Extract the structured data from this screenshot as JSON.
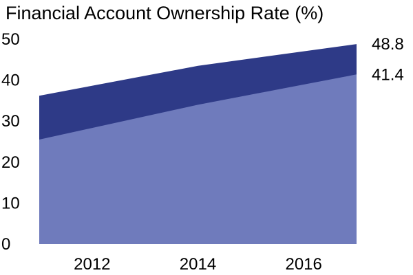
{
  "chart_data": {
    "type": "area",
    "title": "Financial Account Ownership Rate (%)",
    "xlabel": "",
    "ylabel": "",
    "x": [
      2011,
      2014,
      2017
    ],
    "x_ticks": [
      "2012",
      "2014",
      "2016"
    ],
    "y_ticks": [
      "0",
      "10",
      "20",
      "30",
      "40",
      "50"
    ],
    "xlim": [
      2011,
      2017
    ],
    "ylim": [
      0,
      50
    ],
    "stacked": false,
    "grid": false,
    "legend": "none",
    "series": [
      {
        "values": [
          36.2,
          43.5,
          48.8
        ],
        "color": "#2e3a87",
        "end_label": "48.8"
      },
      {
        "values": [
          25.5,
          34.0,
          41.4
        ],
        "color": "#6f7bbc",
        "end_label": "41.4"
      }
    ]
  }
}
